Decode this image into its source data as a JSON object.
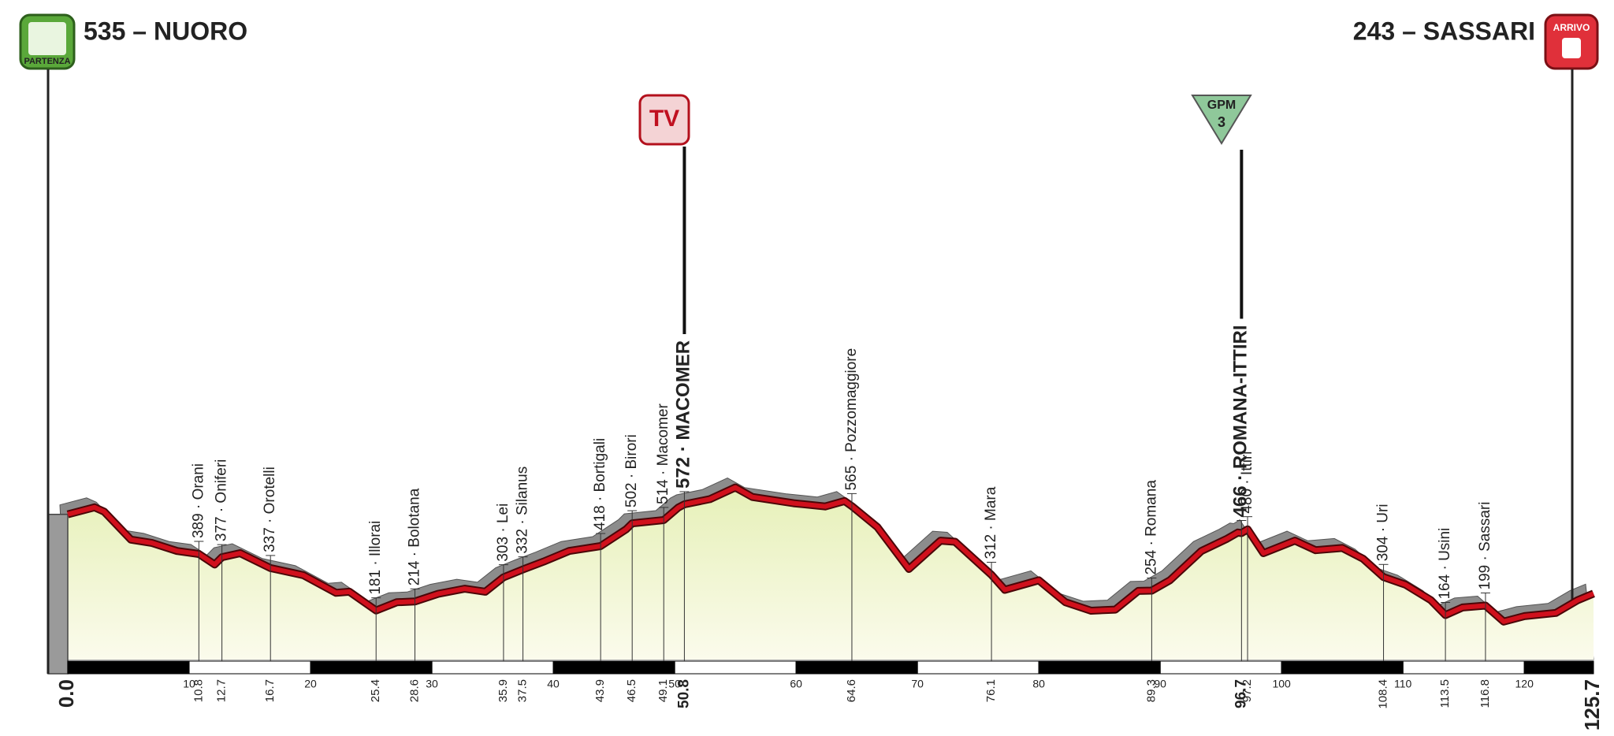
{
  "chart_data": {
    "type": "area",
    "start": "535 – NUORO",
    "start_badge": "PARTENZA",
    "finish": "243 – SASSARI",
    "finish_badge": "ARRIVO",
    "sprint_badge": "TV",
    "climb_badge": "GPM",
    "climb_category": 3,
    "line_color": "#d0101c",
    "xlim": [
      {
        "value": 0,
        "label": "0.0"
      },
      125.7
    ],
    "ylim": [
      0,
      2430
    ],
    "xticks": [
      10,
      20,
      30,
      40,
      50,
      60,
      70,
      80,
      90,
      100,
      110,
      120
    ],
    "x": [
      0,
      2.2,
      3,
      5.2,
      6.9,
      9,
      10.8,
      12.1,
      12.7,
      14.2,
      16.7,
      19.4,
      22.1,
      23.2,
      25.4,
      27.1,
      28.6,
      30.5,
      32.7,
      34.4,
      35.9,
      37.5,
      39.2,
      41.3,
      43.9,
      46,
      46.5,
      49.1,
      50.3,
      50.8,
      52.9,
      55,
      56.4,
      59.8,
      62.4,
      64,
      64.6,
      66.7,
      69.3,
      71.9,
      73.1,
      76.1,
      77.2,
      80,
      82.2,
      84.3,
      86.3,
      88.2,
      89.3,
      90.8,
      93.4,
      95.5,
      96.4,
      96.7,
      97.2,
      98.5,
      101.1,
      102.8,
      105,
      106.7,
      108.4,
      110.2,
      112.3,
      113.5,
      114.9,
      116.8,
      118.3,
      120,
      122.6,
      124.4,
      125.7
    ],
    "values": [
      535,
      561,
      545,
      442,
      430,
      400,
      389,
      350,
      377,
      392,
      337,
      311,
      246,
      250,
      181,
      211,
      214,
      242,
      261,
      250,
      303,
      332,
      361,
      400,
      418,
      480,
      502,
      514,
      560,
      572,
      591,
      634,
      599,
      576,
      564,
      584,
      565,
      488,
      334,
      438,
      434,
      312,
      257,
      292,
      211,
      180,
      184,
      253,
      254,
      292,
      400,
      445,
      468,
      466,
      480,
      392,
      438,
      403,
      411,
      372,
      304,
      276,
      219,
      164,
      192,
      199,
      140,
      160,
      172,
      219,
      243
    ],
    "waypoints": [
      {
        "km": 10.8,
        "label": "389 · Orani"
      },
      {
        "km": 12.7,
        "label": "377 · Oniferi"
      },
      {
        "km": 16.7,
        "label": "337 · Orotelli"
      },
      {
        "km": 25.4,
        "label": "181 · Illorai"
      },
      {
        "km": 28.6,
        "label": "214 · Bolotana"
      },
      {
        "km": 35.9,
        "label": "303 · Lei"
      },
      {
        "km": 37.5,
        "label": "332 · Silanus"
      },
      {
        "km": 43.9,
        "label": "418 · Bortigali"
      },
      {
        "km": 46.5,
        "label": "502 · Birori"
      },
      {
        "km": 49.1,
        "label": "514 · Macomer"
      },
      {
        "km": 50.8,
        "label": "572 · MACOMER",
        "highlight": true
      },
      {
        "km": 64.6,
        "label": "565 · Pozzomaggiore"
      },
      {
        "km": 76.1,
        "label": "312 · Mara"
      },
      {
        "km": 89.3,
        "label": "254 · Romana"
      },
      {
        "km": 96.7,
        "label": "466 · ROMANA-ITTIRI",
        "highlight": true
      },
      {
        "km": 97.2,
        "label": "480 · Ittiri"
      },
      {
        "km": 108.4,
        "label": "304 · Uri"
      },
      {
        "km": 113.5,
        "label": "164 · Usini"
      },
      {
        "km": 116.8,
        "label": "199 · Sassari"
      }
    ]
  }
}
